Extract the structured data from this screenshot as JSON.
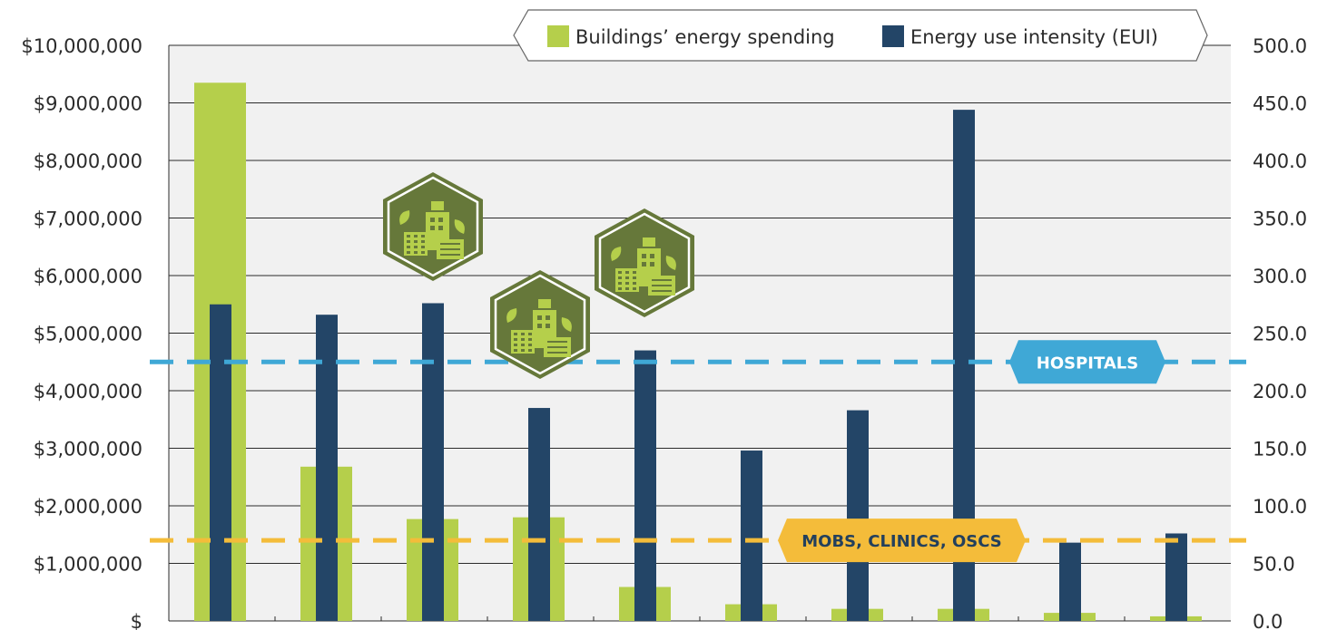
{
  "chart_data": {
    "type": "bar",
    "categories": [
      "",
      "",
      "",
      "",
      "",
      "",
      "",
      "",
      "",
      ""
    ],
    "series": [
      {
        "name": "Buildings’ energy spending",
        "axis": "left",
        "color": "#b5cf4b",
        "values": [
          9350000,
          2680000,
          1770000,
          1800000,
          590000,
          290000,
          210000,
          210000,
          140000,
          80000
        ]
      },
      {
        "name": "Energy use intensity (EUI)",
        "axis": "right",
        "color": "#234567",
        "values": [
          275,
          266,
          276,
          185,
          235,
          148,
          183,
          444,
          68,
          76
        ]
      }
    ],
    "left_axis": {
      "ylim": [
        0,
        10000000
      ],
      "tick_labels": [
        "$",
        "$1,000,000",
        "$2,000,000",
        "$3,000,000",
        "$4,000,000",
        "$5,000,000",
        "$6,000,000",
        "$7,000,000",
        "$8,000,000",
        "$9,000,000",
        "$10,000,000"
      ]
    },
    "right_axis": {
      "ylim": [
        0,
        500
      ],
      "tick_labels": [
        "0.0",
        "50.0",
        "100.0",
        "150.0",
        "200.0",
        "250.0",
        "300.0",
        "350.0",
        "400.0",
        "450.0",
        "500.0"
      ]
    },
    "reference_lines": [
      {
        "label": "HOSPITALS",
        "axis": "right",
        "value": 225,
        "color": "#3fa8d6",
        "text_color": "#ffffff"
      },
      {
        "label": "MOBS, CLINICS, OSCS",
        "axis": "right",
        "value": 70,
        "color": "#f4bc3a",
        "text_color": "#24405c"
      }
    ],
    "grid": true,
    "legend_position": "top-right",
    "icons": [
      {
        "name": "green-building-icon",
        "category_index": 2
      },
      {
        "name": "green-building-icon",
        "category_index": 3
      },
      {
        "name": "green-building-icon",
        "category_index": 4
      }
    ],
    "colors": {
      "plot_background": "#f1f1f1",
      "gridline": "#2b2b2b",
      "icon_fill": "#66783a",
      "icon_detail": "#b5cf4b"
    }
  }
}
